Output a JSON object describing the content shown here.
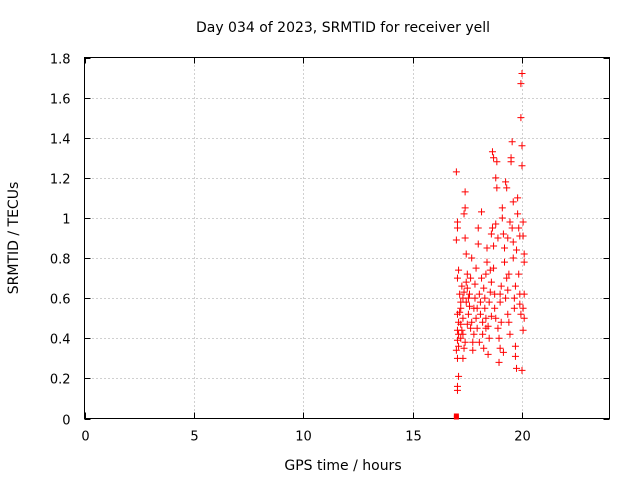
{
  "chart_data": {
    "type": "scatter",
    "title": "Day 034 of 2023, SRMTID for receiver yell",
    "xlabel": "GPS time / hours",
    "ylabel": "SRMTID / TECUs",
    "xlim": [
      0,
      24
    ],
    "ylim": [
      0,
      1.8
    ],
    "xticks": [
      0,
      5,
      10,
      15,
      20
    ],
    "xtick_labels": [
      "0",
      "5",
      "10",
      "15",
      "20"
    ],
    "yticks": [
      0,
      0.2,
      0.4,
      0.6,
      0.8,
      1.0,
      1.2,
      1.4,
      1.6,
      1.8
    ],
    "ytick_labels": [
      "0",
      "0.2",
      "0.4",
      "0.6",
      "0.8",
      "1",
      "1.2",
      "1.4",
      "1.6",
      "1.8"
    ],
    "grid": true,
    "marker": "+",
    "color": "#ff0000",
    "series": [
      {
        "name": "SRMTID",
        "points": [
          [
            17.0,
            0.0
          ],
          [
            17.0,
            0.01
          ],
          [
            17.0,
            1.23
          ],
          [
            17.05,
            0.98
          ],
          [
            17.05,
            0.95
          ],
          [
            17.0,
            0.89
          ],
          [
            17.1,
            0.74
          ],
          [
            17.05,
            0.7
          ],
          [
            17.05,
            0.52
          ],
          [
            17.1,
            0.48
          ],
          [
            17.05,
            0.44
          ],
          [
            17.1,
            0.42
          ],
          [
            17.05,
            0.39
          ],
          [
            17.1,
            0.36
          ],
          [
            17.0,
            0.34
          ],
          [
            17.05,
            0.3
          ],
          [
            17.1,
            0.21
          ],
          [
            17.05,
            0.16
          ],
          [
            17.05,
            0.14
          ],
          [
            17.15,
            0.62
          ],
          [
            17.2,
            0.58
          ],
          [
            17.2,
            0.55
          ],
          [
            17.25,
            0.66
          ],
          [
            17.3,
            0.6
          ],
          [
            17.3,
            0.5
          ],
          [
            17.25,
            0.44
          ],
          [
            17.2,
            0.4
          ],
          [
            17.35,
            0.35
          ],
          [
            17.3,
            0.3
          ],
          [
            17.4,
            1.13
          ],
          [
            17.4,
            1.05
          ],
          [
            17.35,
            1.02
          ],
          [
            17.4,
            0.9
          ],
          [
            17.45,
            0.82
          ],
          [
            17.5,
            0.72
          ],
          [
            17.5,
            0.65
          ],
          [
            17.45,
            0.58
          ],
          [
            17.55,
            0.52
          ],
          [
            17.5,
            0.47
          ],
          [
            17.6,
            0.56
          ],
          [
            17.6,
            0.62
          ],
          [
            17.65,
            0.7
          ],
          [
            17.7,
            0.8
          ],
          [
            17.7,
            0.48
          ],
          [
            17.75,
            0.38
          ],
          [
            17.75,
            0.34
          ],
          [
            17.8,
            0.55
          ],
          [
            17.85,
            0.6
          ],
          [
            17.85,
            0.67
          ],
          [
            17.9,
            0.75
          ],
          [
            17.9,
            0.5
          ],
          [
            17.95,
            0.45
          ],
          [
            18.0,
            0.95
          ],
          [
            18.0,
            0.87
          ],
          [
            18.05,
            0.62
          ],
          [
            18.1,
            0.58
          ],
          [
            18.1,
            0.52
          ],
          [
            18.15,
            0.7
          ],
          [
            18.15,
            1.03
          ],
          [
            18.2,
            0.48
          ],
          [
            18.2,
            0.42
          ],
          [
            18.25,
            0.65
          ],
          [
            18.3,
            0.6
          ],
          [
            18.3,
            0.55
          ],
          [
            18.35,
            0.5
          ],
          [
            18.35,
            0.72
          ],
          [
            18.4,
            0.78
          ],
          [
            18.4,
            0.85
          ],
          [
            18.45,
            0.46
          ],
          [
            18.5,
            0.4
          ],
          [
            18.5,
            0.58
          ],
          [
            18.55,
            0.63
          ],
          [
            18.6,
            0.68
          ],
          [
            18.6,
            0.92
          ],
          [
            18.65,
            0.95
          ],
          [
            18.65,
            1.33
          ],
          [
            18.7,
            1.3
          ],
          [
            18.7,
            0.75
          ],
          [
            18.75,
            0.62
          ],
          [
            18.75,
            0.55
          ],
          [
            18.8,
            0.5
          ],
          [
            18.8,
            1.2
          ],
          [
            18.85,
            1.15
          ],
          [
            18.85,
            1.28
          ],
          [
            18.9,
            0.9
          ],
          [
            18.9,
            0.45
          ],
          [
            18.95,
            0.4
          ],
          [
            18.95,
            0.28
          ],
          [
            19.0,
            0.35
          ],
          [
            19.0,
            0.58
          ],
          [
            19.05,
            0.66
          ],
          [
            19.1,
            1.05
          ],
          [
            19.1,
            1.0
          ],
          [
            19.15,
            0.92
          ],
          [
            19.2,
            0.85
          ],
          [
            19.2,
            0.78
          ],
          [
            19.25,
            1.18
          ],
          [
            19.3,
            1.15
          ],
          [
            19.3,
            0.7
          ],
          [
            19.35,
            0.64
          ],
          [
            19.35,
            0.52
          ],
          [
            19.4,
            0.48
          ],
          [
            19.45,
            0.42
          ],
          [
            19.5,
            1.28
          ],
          [
            19.5,
            1.3
          ],
          [
            19.55,
            1.38
          ],
          [
            19.55,
            0.95
          ],
          [
            19.6,
            0.88
          ],
          [
            19.6,
            0.8
          ],
          [
            19.65,
            0.6
          ],
          [
            19.65,
            0.55
          ],
          [
            19.7,
            0.36
          ],
          [
            19.7,
            0.31
          ],
          [
            19.75,
            0.25
          ],
          [
            19.8,
            1.1
          ],
          [
            19.8,
            1.02
          ],
          [
            19.85,
            0.95
          ],
          [
            19.85,
            0.72
          ],
          [
            19.9,
            0.62
          ],
          [
            19.9,
            0.57
          ],
          [
            19.95,
            0.52
          ],
          [
            19.95,
            1.5
          ],
          [
            19.95,
            1.67
          ],
          [
            20.0,
            1.72
          ],
          [
            20.0,
            1.36
          ],
          [
            20.0,
            1.26
          ],
          [
            20.05,
            0.98
          ],
          [
            20.05,
            0.91
          ],
          [
            20.1,
            0.82
          ],
          [
            20.1,
            0.62
          ],
          [
            20.05,
            0.55
          ],
          [
            20.1,
            0.5
          ],
          [
            20.05,
            0.44
          ],
          [
            20.0,
            0.24
          ],
          [
            17.15,
            0.53
          ],
          [
            17.2,
            0.47
          ],
          [
            17.3,
            0.42
          ],
          [
            17.4,
            0.38
          ],
          [
            17.55,
            0.6
          ],
          [
            17.65,
            0.45
          ],
          [
            17.8,
            0.42
          ],
          [
            18.05,
            0.38
          ],
          [
            18.25,
            0.35
          ],
          [
            18.45,
            0.32
          ],
          [
            18.55,
            0.74
          ],
          [
            18.7,
            0.86
          ],
          [
            18.8,
            0.97
          ],
          [
            19.05,
            0.48
          ],
          [
            19.15,
            0.33
          ],
          [
            19.25,
            0.6
          ],
          [
            19.4,
            0.72
          ],
          [
            19.45,
            0.98
          ],
          [
            19.6,
            1.08
          ],
          [
            19.75,
            0.84
          ],
          [
            19.9,
            0.91
          ],
          [
            20.1,
            0.78
          ],
          [
            17.35,
            0.63
          ],
          [
            17.45,
            0.68
          ],
          [
            17.95,
            0.55
          ],
          [
            18.35,
            0.45
          ],
          [
            18.6,
            0.51
          ],
          [
            19.0,
            0.62
          ],
          [
            19.35,
            0.9
          ],
          [
            19.7,
            0.66
          ]
        ]
      }
    ]
  }
}
